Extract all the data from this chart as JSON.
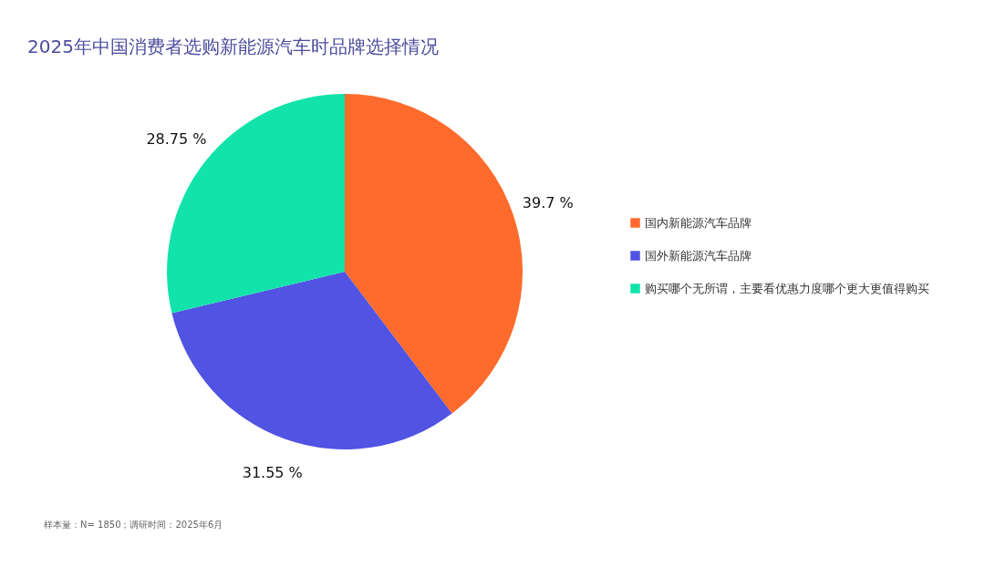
{
  "chart_data": {
    "type": "pie",
    "title": "2025年中国消费者选购新能源汽车时品牌选择情况",
    "categories": [
      "国内新能源汽车品牌",
      "国外新能源汽车品牌",
      "购买哪个无所谓，主要看优惠力度哪个更大更值得购买"
    ],
    "values": [
      39.7,
      31.55,
      28.75
    ],
    "colors": [
      "#ff6b2c",
      "#5153e2",
      "#12e3aa"
    ],
    "value_labels": [
      "39.7 %",
      "31.55 %",
      "28.75 %"
    ],
    "legend": "right",
    "annotations": [
      "样本量：N= 1850；调研时间：2025年6月"
    ]
  }
}
